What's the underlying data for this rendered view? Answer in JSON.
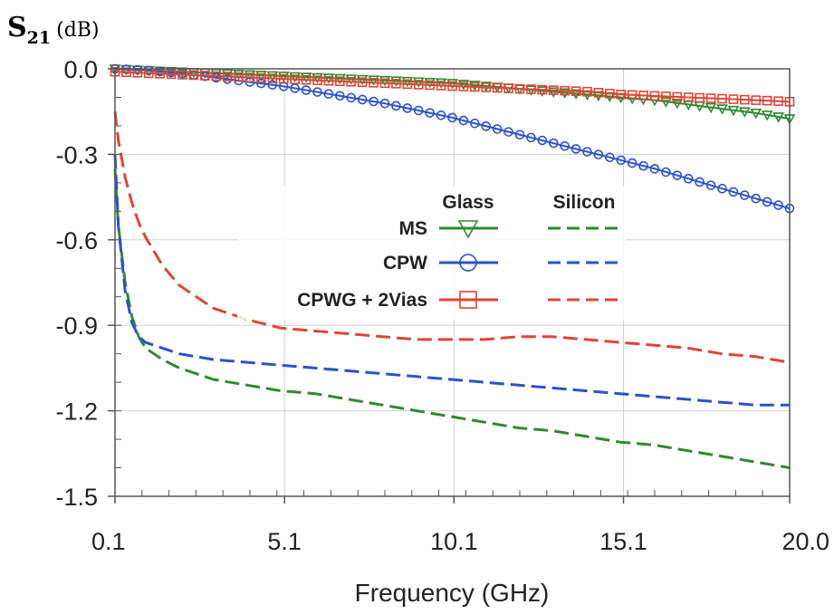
{
  "chart_data": {
    "type": "line",
    "ylabel_main": "S",
    "ylabel_sub": "21",
    "ylabel_unit": "(dB)",
    "xlabel": "Frequency (GHz)",
    "xlim": [
      0.1,
      20.0
    ],
    "ylim": [
      -1.5,
      0.0
    ],
    "xticks": [
      "0.1",
      "5.1",
      "10.1",
      "15.1",
      "20.0"
    ],
    "xtick_values": [
      0.1,
      5.1,
      10.1,
      15.1,
      20.0
    ],
    "yticks": [
      "0.0",
      "-0.3",
      "-0.6",
      "-0.9",
      "-1.2",
      "-1.5"
    ],
    "ytick_values": [
      0.0,
      -0.3,
      -0.6,
      -0.9,
      -1.2,
      -1.5
    ],
    "grid": true,
    "legend": {
      "position": "center",
      "col_headers": [
        "Glass",
        "Silicon"
      ],
      "rows": [
        "MS",
        "CPW",
        "CPWG + 2Vias"
      ]
    },
    "series": [
      {
        "name": "MS",
        "substrate": "Glass",
        "color": "#2e8b2e",
        "style": "solid",
        "marker": "triangle-down",
        "x": [
          0.1,
          1,
          2,
          3,
          4,
          5,
          6,
          7,
          8,
          9,
          10,
          11,
          12,
          13,
          14,
          15,
          16,
          17,
          18,
          19,
          20
        ],
        "y": [
          0.0,
          -0.005,
          -0.01,
          -0.015,
          -0.02,
          -0.025,
          -0.03,
          -0.035,
          -0.04,
          -0.045,
          -0.05,
          -0.06,
          -0.07,
          -0.08,
          -0.09,
          -0.1,
          -0.11,
          -0.125,
          -0.14,
          -0.155,
          -0.175
        ]
      },
      {
        "name": "CPW",
        "substrate": "Glass",
        "color": "#2a52cc",
        "style": "solid",
        "marker": "circle",
        "x": [
          0.1,
          1,
          2,
          3,
          4,
          5,
          6,
          7,
          8,
          9,
          10,
          11,
          12,
          13,
          14,
          15,
          16,
          17,
          18,
          19,
          20
        ],
        "y": [
          0.0,
          -0.005,
          -0.015,
          -0.03,
          -0.045,
          -0.06,
          -0.08,
          -0.1,
          -0.12,
          -0.145,
          -0.17,
          -0.2,
          -0.23,
          -0.26,
          -0.29,
          -0.32,
          -0.35,
          -0.385,
          -0.42,
          -0.455,
          -0.49
        ]
      },
      {
        "name": "CPWG + 2Vias",
        "substrate": "Glass",
        "color": "#e04535",
        "style": "solid",
        "marker": "square",
        "x": [
          0.1,
          1,
          2,
          3,
          4,
          5,
          6,
          7,
          8,
          9,
          10,
          11,
          12,
          13,
          14,
          15,
          16,
          17,
          18,
          19,
          20
        ],
        "y": [
          -0.01,
          -0.015,
          -0.02,
          -0.025,
          -0.03,
          -0.035,
          -0.04,
          -0.045,
          -0.05,
          -0.055,
          -0.06,
          -0.065,
          -0.07,
          -0.075,
          -0.08,
          -0.09,
          -0.095,
          -0.1,
          -0.105,
          -0.11,
          -0.115
        ]
      },
      {
        "name": "MS",
        "substrate": "Silicon",
        "color": "#2e8b2e",
        "style": "dashed",
        "marker": "none",
        "x": [
          0.1,
          0.2,
          0.4,
          0.6,
          0.8,
          1.0,
          1.5,
          2,
          3,
          4,
          5,
          6,
          7,
          8,
          9,
          10,
          11,
          12,
          13,
          14,
          15,
          16,
          17,
          18,
          19,
          20
        ],
        "y": [
          -0.35,
          -0.55,
          -0.75,
          -0.87,
          -0.94,
          -0.98,
          -1.02,
          -1.05,
          -1.09,
          -1.11,
          -1.13,
          -1.14,
          -1.16,
          -1.18,
          -1.2,
          -1.22,
          -1.24,
          -1.26,
          -1.27,
          -1.29,
          -1.31,
          -1.32,
          -1.34,
          -1.36,
          -1.38,
          -1.4
        ]
      },
      {
        "name": "CPW",
        "substrate": "Silicon",
        "color": "#2a52cc",
        "style": "dashed",
        "marker": "none",
        "x": [
          0.1,
          0.2,
          0.4,
          0.6,
          0.8,
          1.0,
          1.5,
          2,
          3,
          4,
          5,
          6,
          7,
          8,
          9,
          10,
          11,
          12,
          13,
          14,
          15,
          16,
          17,
          18,
          19,
          20
        ],
        "y": [
          -0.3,
          -0.55,
          -0.78,
          -0.89,
          -0.94,
          -0.96,
          -0.98,
          -1.0,
          -1.02,
          -1.03,
          -1.04,
          -1.05,
          -1.06,
          -1.07,
          -1.08,
          -1.09,
          -1.1,
          -1.11,
          -1.12,
          -1.13,
          -1.14,
          -1.15,
          -1.16,
          -1.17,
          -1.18,
          -1.18
        ]
      },
      {
        "name": "CPWG + 2Vias",
        "substrate": "Silicon",
        "color": "#e04535",
        "style": "dashed",
        "marker": "none",
        "x": [
          0.1,
          0.2,
          0.4,
          0.6,
          0.8,
          1.0,
          1.5,
          2,
          3,
          4,
          5,
          6,
          7,
          8,
          9,
          10,
          11,
          12,
          13,
          14,
          15,
          16,
          17,
          18,
          19,
          20
        ],
        "y": [
          -0.15,
          -0.25,
          -0.38,
          -0.47,
          -0.54,
          -0.59,
          -0.69,
          -0.76,
          -0.84,
          -0.88,
          -0.91,
          -0.92,
          -0.93,
          -0.94,
          -0.95,
          -0.95,
          -0.95,
          -0.94,
          -0.94,
          -0.95,
          -0.96,
          -0.97,
          -0.98,
          -1.0,
          -1.01,
          -1.03
        ]
      }
    ]
  }
}
